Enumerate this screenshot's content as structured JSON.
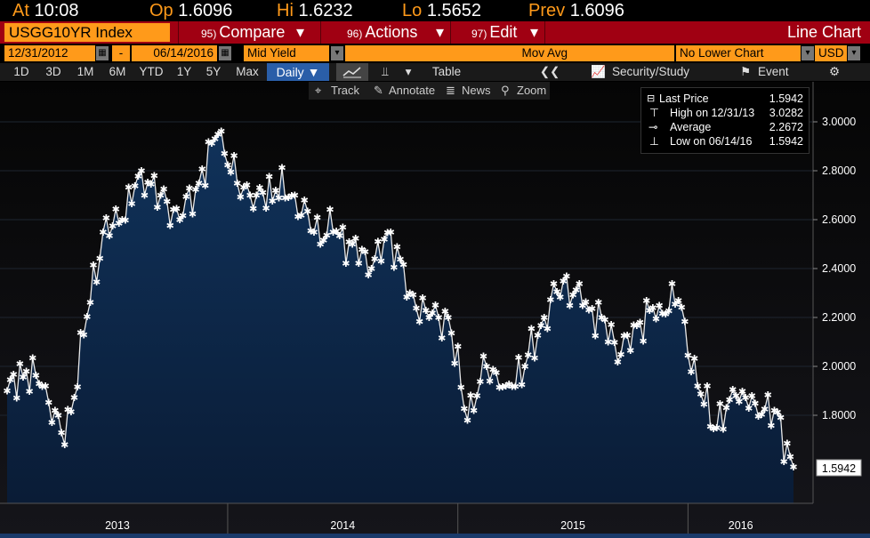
{
  "quote": {
    "at_label": "At",
    "at_value": "10:08",
    "op_label": "Op",
    "op_value": "1.6096",
    "hi_label": "Hi",
    "hi_value": "1.6232",
    "lo_label": "Lo",
    "lo_value": "1.5652",
    "prev_label": "Prev",
    "prev_value": "1.6096"
  },
  "toolbar": {
    "ticker": "USGG10YR Index",
    "compare_num": "95)",
    "compare_label": "Compare",
    "actions_num": "96)",
    "actions_label": "Actions",
    "edit_num": "97)",
    "edit_label": "Edit",
    "line_chart": "Line Chart"
  },
  "settings": {
    "start_date": "12/31/2012",
    "dash": "-",
    "end_date": "06/14/2016",
    "field": "Mid Yield",
    "mov_avg": "Mov Avg",
    "lower_chart": "No Lower Chart",
    "currency": "USD"
  },
  "ranges": [
    "1D",
    "3D",
    "1M",
    "6M",
    "YTD",
    "1Y",
    "5Y",
    "Max"
  ],
  "period": "Daily ▼",
  "view_tabs": {
    "table": "Table",
    "security_study": "Security/Study",
    "event": "Event"
  },
  "tools": {
    "track": "Track",
    "annotate": "Annotate",
    "news": "News",
    "zoom": "Zoom"
  },
  "legend": {
    "last_label": "Last Price",
    "last_value": "1.5942",
    "high_label": "High on 12/31/13",
    "high_value": "3.0282",
    "avg_label": "Average",
    "avg_value": "2.2672",
    "low_label": "Low on 06/14/16",
    "low_value": "1.5942"
  },
  "colors": {
    "orange": "#ff9a1a",
    "red_bar": "#a00012",
    "area_top": "#0f2a4a",
    "line": "#ffffff"
  },
  "chart_data": {
    "type": "area",
    "title": "USGG10YR Index",
    "ylabel": "Mid Yield",
    "ylim": [
      1.5,
      3.1
    ],
    "y_ticks": [
      "3.0000",
      "2.8000",
      "2.6000",
      "2.4000",
      "2.2000",
      "2.0000",
      "1.8000"
    ],
    "x_labels": [
      "2013",
      "2014",
      "2015",
      "2016"
    ],
    "last_value_label": "1.5942",
    "x_monthly": [
      "2013-01",
      "2013-02",
      "2013-03",
      "2013-04",
      "2013-05",
      "2013-06",
      "2013-07",
      "2013-08",
      "2013-09",
      "2013-10",
      "2013-11",
      "2013-12",
      "2014-01",
      "2014-02",
      "2014-03",
      "2014-04",
      "2014-05",
      "2014-06",
      "2014-07",
      "2014-08",
      "2014-09",
      "2014-10",
      "2014-11",
      "2014-12",
      "2015-01",
      "2015-02",
      "2015-03",
      "2015-04",
      "2015-05",
      "2015-06",
      "2015-07",
      "2015-08",
      "2015-09",
      "2015-10",
      "2015-11",
      "2015-12",
      "2016-01",
      "2016-02",
      "2016-03",
      "2016-04",
      "2016-05",
      "2016-06"
    ],
    "series": [
      {
        "name": "USGG10YR Index",
        "values": [
          1.9,
          1.98,
          1.92,
          1.68,
          2.13,
          2.55,
          2.6,
          2.8,
          2.7,
          2.6,
          2.75,
          2.95,
          2.75,
          2.7,
          2.72,
          2.7,
          2.55,
          2.55,
          2.5,
          2.4,
          2.55,
          2.3,
          2.2,
          2.2,
          1.78,
          2.0,
          1.92,
          2.0,
          2.2,
          2.35,
          2.25,
          2.2,
          2.05,
          2.18,
          2.25,
          2.27,
          1.92,
          1.75,
          1.88,
          1.85,
          1.82,
          1.59
        ]
      }
    ]
  }
}
